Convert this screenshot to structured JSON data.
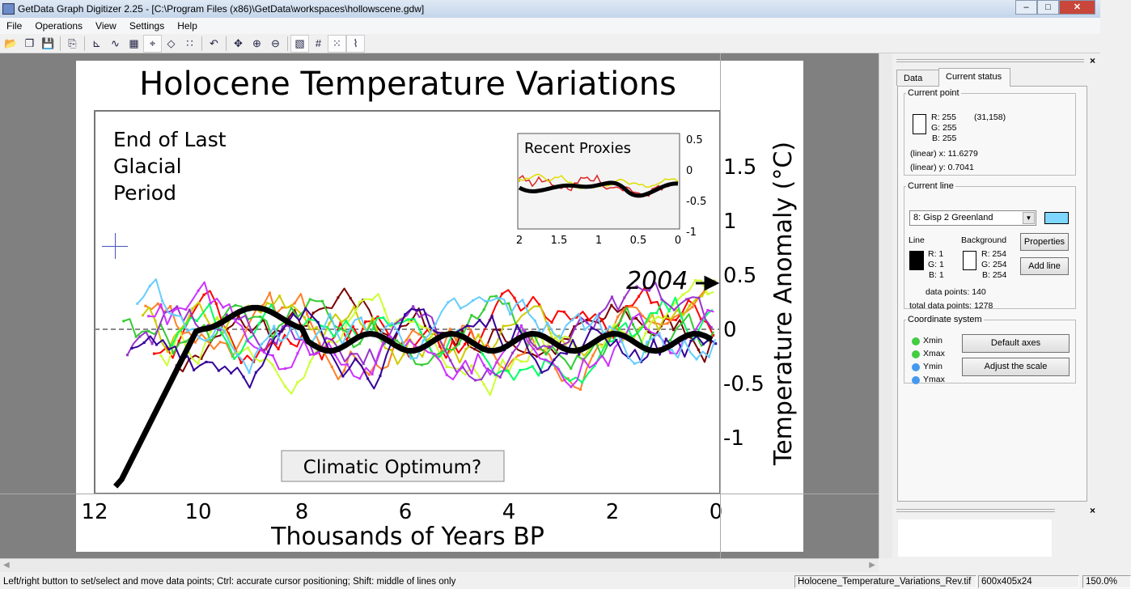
{
  "window": {
    "title": "GetData Graph Digitizer 2.25 - [C:\\Program Files (x86)\\GetData\\workspaces\\hollowscene.gdw]",
    "min": "–",
    "max": "□",
    "close": "✕"
  },
  "menu": [
    "File",
    "Operations",
    "View",
    "Settings",
    "Help"
  ],
  "toolbar": [
    {
      "name": "open-icon",
      "glyph": "📂"
    },
    {
      "name": "reopen-icon",
      "glyph": "❐"
    },
    {
      "name": "save-icon",
      "glyph": "💾"
    },
    {
      "sep": true
    },
    {
      "name": "copy-icon",
      "glyph": "⎘"
    },
    {
      "sep": true
    },
    {
      "name": "set-axes-icon",
      "glyph": "⊾"
    },
    {
      "name": "auto-trace-lines-icon",
      "glyph": "∿"
    },
    {
      "name": "digitize-area-icon",
      "glyph": "▦"
    },
    {
      "name": "point-capture-icon",
      "glyph": "⌖",
      "active": true
    },
    {
      "name": "eraser-icon",
      "glyph": "◇"
    },
    {
      "name": "reorder-points-icon",
      "glyph": "∷"
    },
    {
      "sep": true
    },
    {
      "name": "undo-icon",
      "glyph": "↶"
    },
    {
      "sep": true
    },
    {
      "name": "pan-icon",
      "glyph": "✥"
    },
    {
      "name": "zoom-in-icon",
      "glyph": "⊕"
    },
    {
      "name": "zoom-out-icon",
      "glyph": "⊖"
    },
    {
      "sep": true
    },
    {
      "name": "show-image-icon",
      "glyph": "▧",
      "active": true
    },
    {
      "name": "grid-icon",
      "glyph": "#"
    },
    {
      "name": "show-points-icon",
      "glyph": "⁙",
      "active": true
    },
    {
      "name": "show-lines-icon",
      "glyph": "⌇",
      "active": true
    }
  ],
  "image": {
    "title": "Holocene Temperature Variations",
    "annotation_glacial": [
      "End of Last",
      "Glacial",
      "Period"
    ],
    "annotation_optimum": "Climatic Optimum?",
    "annotation_2004": "2004",
    "inset_title": "Recent Proxies",
    "inset_x_ticks": [
      "2",
      "1.5",
      "1",
      "0.5",
      "0"
    ],
    "inset_y_ticks": [
      "0.5",
      "0",
      "-0.5",
      "-1"
    ],
    "xlabel": "Thousands of Years BP",
    "ylabel": "Temperature Anomaly (°C)",
    "x_ticks": [
      "12",
      "10",
      "8",
      "6",
      "4",
      "2",
      "0"
    ],
    "y_ticks": [
      "1.5",
      "1",
      "0.5",
      "0",
      "-0.5",
      "-1"
    ],
    "series_colors": [
      "#7a0000",
      "#ff0000",
      "#ff7f27",
      "#cccc00",
      "#ccff33",
      "#00ff66",
      "#33cc33",
      "#9933cc",
      "#cc33ff",
      "#330099",
      "#66ccff",
      "#000000"
    ]
  },
  "panel": {
    "tabs": [
      "Data",
      "Current status"
    ],
    "active_tab": 1,
    "current_point": {
      "legend": "Current point",
      "r": "R: 255",
      "g": "G: 255",
      "b": "B: 255",
      "pixel": "(31,158)",
      "x": "(linear)  x: 11.6279",
      "y": "(linear)  y: 0.7041"
    },
    "current_line": {
      "legend": "Current line",
      "selected": "8: Gisp 2 Greenland",
      "line_color": "#7fd6ff",
      "line_label": "Line",
      "bg_label": "Background",
      "line_r": "R: 1",
      "line_g": "G: 1",
      "line_b": "B: 1",
      "bg_r": "R: 254",
      "bg_g": "G: 254",
      "bg_b": "B: 254",
      "properties": "Properties",
      "add_line": "Add line",
      "data_points": "data points:  140",
      "total_points": "total data points:  1278"
    },
    "coords": {
      "legend": "Coordinate system",
      "xmin": "Xmin",
      "xmax": "Xmax",
      "ymin": "Ymin",
      "ymax": "Ymax",
      "default_axes": "Default axes",
      "adjust_scale": "Adjust the scale",
      "x_color": "#44cc44",
      "y_color": "#4499ee"
    }
  },
  "status": {
    "message": "Left/right button to set/select and move data points; Ctrl: accurate cursor positioning; Shift: middle of lines only",
    "file": "Holocene_Temperature_Variations_Rev.tif",
    "size": "600x405x24",
    "zoom": "150.0%"
  }
}
